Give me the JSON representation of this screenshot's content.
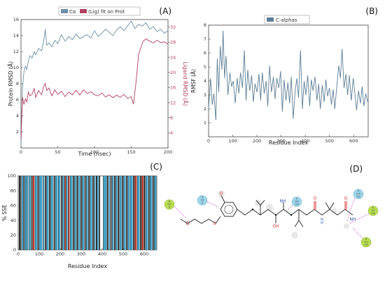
{
  "chart_data": [
    {
      "id": "A",
      "panel_label": "(A)",
      "type": "line",
      "title": "",
      "xlabel": "Time (nsec)",
      "ylabel": "Protein RMSD (Å)",
      "y2label": "Ligand RMSD (Å)",
      "xlim": [
        0,
        200
      ],
      "ylim": [
        0,
        16
      ],
      "y2lim": [
        0,
        34
      ],
      "x_ticks": [
        "0",
        "50",
        "100",
        "150",
        "200"
      ],
      "y_ticks": [
        "2",
        "4",
        "6",
        "8",
        "10",
        "12",
        "14",
        "16"
      ],
      "y2_ticks": [
        "4",
        "8",
        "12",
        "16",
        "20",
        "24",
        "28",
        "32"
      ],
      "legend": {
        "position": "top",
        "entries": [
          "Cα",
          "(Lig) fit on Prot"
        ]
      },
      "series": [
        {
          "name": "Cα",
          "axis": "left",
          "color": "#6a8fa8",
          "x": [
            0,
            2,
            4,
            6,
            8,
            10,
            12,
            15,
            18,
            20,
            24,
            28,
            31,
            33,
            35,
            38,
            42,
            46,
            50,
            55,
            60,
            65,
            70,
            75,
            80,
            85,
            90,
            95,
            100,
            105,
            110,
            115,
            120,
            125,
            130,
            135,
            140,
            145,
            150,
            155,
            160,
            165,
            170,
            175,
            180,
            185,
            190,
            195,
            200
          ],
          "y": [
            0.3,
            7.5,
            9.5,
            10.2,
            9.8,
            10.8,
            11.5,
            11.2,
            12.0,
            11.6,
            12.4,
            12.1,
            13.3,
            14.8,
            12.8,
            13.1,
            12.6,
            13.4,
            13.0,
            14.1,
            13.3,
            13.9,
            13.5,
            14.2,
            13.6,
            13.9,
            14.1,
            13.7,
            14.6,
            13.9,
            14.3,
            14.8,
            14.4,
            14.0,
            14.7,
            15.1,
            14.6,
            15.2,
            15.8,
            14.9,
            15.4,
            15.2,
            15.6,
            14.8,
            15.1,
            14.5,
            14.8,
            14.3,
            14.6
          ]
        },
        {
          "name": "(Lig) fit on Prot",
          "axis": "right",
          "color": "#b24060",
          "x": [
            0,
            2,
            4,
            6,
            8,
            10,
            12,
            15,
            18,
            20,
            24,
            28,
            31,
            33,
            35,
            38,
            42,
            46,
            50,
            55,
            60,
            65,
            70,
            75,
            80,
            85,
            90,
            95,
            100,
            105,
            110,
            115,
            120,
            125,
            130,
            135,
            140,
            145,
            150,
            153,
            156,
            158,
            160,
            163,
            166,
            170,
            175,
            180,
            185,
            190,
            195,
            200
          ],
          "y": [
            2.5,
            13.5,
            11.5,
            13.0,
            12.2,
            14.8,
            13.8,
            14.2,
            15.8,
            13.4,
            15.2,
            14.1,
            16.3,
            17.1,
            15.2,
            15.9,
            13.8,
            15.4,
            14.2,
            15.0,
            13.6,
            14.8,
            14.1,
            15.3,
            14.0,
            15.4,
            14.4,
            14.9,
            14.1,
            13.8,
            14.6,
            13.5,
            14.1,
            13.3,
            14.0,
            13.4,
            14.2,
            13.1,
            13.6,
            11.6,
            16.5,
            20.5,
            24.8,
            26.5,
            28.2,
            28.9,
            28.3,
            27.8,
            28.5,
            27.9,
            28.1,
            27.5
          ]
        }
      ]
    },
    {
      "id": "B",
      "panel_label": "(B)",
      "type": "line",
      "title": "",
      "xlabel": "Residue Index",
      "ylabel": "RMSF (Å)",
      "xlim": [
        0,
        660
      ],
      "ylim": [
        0,
        8
      ],
      "x_ticks": [
        "0",
        "100",
        "200",
        "300",
        "400",
        "500",
        "600"
      ],
      "y_ticks": [
        "1",
        "2",
        "3",
        "4",
        "5",
        "6",
        "7",
        "8"
      ],
      "legend": {
        "position": "top",
        "entries": [
          "C-alphas"
        ]
      },
      "series": [
        {
          "name": "C-alphas",
          "color": "#5d7e96",
          "x": [
            0,
            8,
            15,
            22,
            30,
            36,
            42,
            48,
            55,
            60,
            66,
            72,
            80,
            88,
            95,
            102,
            110,
            118,
            125,
            132,
            140,
            148,
            155,
            162,
            170,
            178,
            185,
            192,
            200,
            208,
            215,
            222,
            230,
            238,
            245,
            252,
            260,
            268,
            275,
            282,
            290,
            298,
            305,
            312,
            320,
            328,
            335,
            342,
            350,
            358,
            365,
            372,
            380,
            388,
            395,
            402,
            410,
            418,
            425,
            432,
            440,
            448,
            455,
            462,
            470,
            478,
            485,
            492,
            500,
            508,
            515,
            522,
            530,
            538,
            545,
            552,
            560,
            568,
            575,
            582,
            590,
            598,
            605,
            612,
            620,
            628,
            635,
            642,
            650,
            658
          ],
          "y": [
            2.0,
            4.2,
            2.3,
            3.1,
            1.2,
            5.6,
            3.2,
            6.5,
            4.8,
            7.6,
            4.2,
            5.8,
            3.0,
            4.6,
            3.6,
            4.0,
            2.4,
            4.2,
            3.1,
            4.6,
            3.5,
            6.2,
            2.6,
            4.8,
            3.3,
            4.4,
            2.5,
            3.8,
            3.2,
            4.5,
            2.6,
            4.6,
            3.1,
            4.0,
            2.2,
            5.1,
            3.2,
            4.3,
            2.7,
            4.2,
            3.5,
            4.7,
            1.8,
            4.1,
            2.6,
            3.9,
            2.4,
            4.3,
            1.3,
            3.3,
            4.2,
            2.8,
            6.2,
            2.0,
            4.0,
            3.0,
            4.4,
            2.2,
            4.1,
            3.3,
            4.3,
            2.6,
            3.8,
            2.0,
            3.7,
            2.5,
            4.1,
            2.9,
            3.5,
            2.3,
            3.4,
            2.0,
            3.6,
            5.1,
            4.2,
            6.3,
            3.5,
            4.5,
            3.0,
            4.4,
            2.6,
            4.2,
            3.1,
            1.9,
            3.3,
            2.4,
            3.6,
            2.2,
            3.1,
            2.5
          ]
        }
      ]
    },
    {
      "id": "C",
      "panel_label": "(C)",
      "type": "bar",
      "title": "",
      "xlabel": "Residue Index",
      "ylabel": "% SSE",
      "xlim": [
        0,
        660
      ],
      "ylim": [
        0,
        100
      ],
      "x_ticks": [
        "0",
        "100",
        "200",
        "300",
        "400",
        "500",
        "600"
      ],
      "y_ticks": [
        "0",
        "20",
        "40",
        "60",
        "80",
        "100"
      ],
      "colors": {
        "helix": "#3ea2c8",
        "strand": "#c43b2c",
        "other": "#111111"
      },
      "segments": [
        {
          "start": 5,
          "end": 12,
          "cls": "other"
        },
        {
          "start": 16,
          "end": 23,
          "cls": "helix"
        },
        {
          "start": 25,
          "end": 28,
          "cls": "other"
        },
        {
          "start": 31,
          "end": 40,
          "cls": "helix"
        },
        {
          "start": 42,
          "end": 48,
          "cls": "helix"
        },
        {
          "start": 52,
          "end": 60,
          "cls": "helix"
        },
        {
          "start": 63,
          "end": 66,
          "cls": "other"
        },
        {
          "start": 69,
          "end": 77,
          "cls": "strand"
        },
        {
          "start": 80,
          "end": 90,
          "cls": "helix"
        },
        {
          "start": 93,
          "end": 97,
          "cls": "other"
        },
        {
          "start": 100,
          "end": 114,
          "cls": "helix"
        },
        {
          "start": 118,
          "end": 124,
          "cls": "helix"
        },
        {
          "start": 128,
          "end": 132,
          "cls": "other"
        },
        {
          "start": 135,
          "end": 145,
          "cls": "helix"
        },
        {
          "start": 148,
          "end": 152,
          "cls": "other"
        },
        {
          "start": 155,
          "end": 166,
          "cls": "helix"
        },
        {
          "start": 170,
          "end": 174,
          "cls": "other"
        },
        {
          "start": 177,
          "end": 188,
          "cls": "helix"
        },
        {
          "start": 191,
          "end": 200,
          "cls": "helix"
        },
        {
          "start": 204,
          "end": 208,
          "cls": "other"
        },
        {
          "start": 211,
          "end": 219,
          "cls": "helix"
        },
        {
          "start": 221,
          "end": 226,
          "cls": "strand"
        },
        {
          "start": 228,
          "end": 235,
          "cls": "helix"
        },
        {
          "start": 238,
          "end": 244,
          "cls": "strand"
        },
        {
          "start": 247,
          "end": 258,
          "cls": "helix"
        },
        {
          "start": 261,
          "end": 265,
          "cls": "other"
        },
        {
          "start": 268,
          "end": 276,
          "cls": "helix"
        },
        {
          "start": 279,
          "end": 283,
          "cls": "other"
        },
        {
          "start": 286,
          "end": 295,
          "cls": "helix"
        },
        {
          "start": 298,
          "end": 302,
          "cls": "other"
        },
        {
          "start": 305,
          "end": 314,
          "cls": "helix"
        },
        {
          "start": 317,
          "end": 321,
          "cls": "other"
        },
        {
          "start": 324,
          "end": 332,
          "cls": "helix"
        },
        {
          "start": 335,
          "end": 339,
          "cls": "other"
        },
        {
          "start": 342,
          "end": 352,
          "cls": "helix"
        },
        {
          "start": 355,
          "end": 359,
          "cls": "other"
        },
        {
          "start": 362,
          "end": 368,
          "cls": "helix"
        },
        {
          "start": 371,
          "end": 374,
          "cls": "other"
        },
        {
          "start": 376,
          "end": 383,
          "cls": "helix"
        },
        {
          "start": 386,
          "end": 390,
          "cls": "other"
        },
        {
          "start": 405,
          "end": 420,
          "cls": "helix"
        },
        {
          "start": 423,
          "end": 427,
          "cls": "other"
        },
        {
          "start": 430,
          "end": 436,
          "cls": "helix"
        },
        {
          "start": 440,
          "end": 444,
          "cls": "other"
        },
        {
          "start": 447,
          "end": 455,
          "cls": "helix"
        },
        {
          "start": 458,
          "end": 462,
          "cls": "other"
        },
        {
          "start": 465,
          "end": 473,
          "cls": "helix"
        },
        {
          "start": 476,
          "end": 480,
          "cls": "other"
        },
        {
          "start": 483,
          "end": 492,
          "cls": "helix"
        },
        {
          "start": 495,
          "end": 499,
          "cls": "other"
        },
        {
          "start": 502,
          "end": 512,
          "cls": "helix"
        },
        {
          "start": 515,
          "end": 519,
          "cls": "other"
        },
        {
          "start": 522,
          "end": 530,
          "cls": "helix"
        },
        {
          "start": 533,
          "end": 545,
          "cls": "helix"
        },
        {
          "start": 548,
          "end": 552,
          "cls": "other"
        },
        {
          "start": 555,
          "end": 564,
          "cls": "strand"
        },
        {
          "start": 567,
          "end": 578,
          "cls": "helix"
        },
        {
          "start": 581,
          "end": 585,
          "cls": "other"
        },
        {
          "start": 588,
          "end": 596,
          "cls": "strand"
        },
        {
          "start": 599,
          "end": 604,
          "cls": "other"
        },
        {
          "start": 607,
          "end": 618,
          "cls": "helix"
        },
        {
          "start": 621,
          "end": 625,
          "cls": "other"
        },
        {
          "start": 628,
          "end": 638,
          "cls": "helix"
        },
        {
          "start": 641,
          "end": 645,
          "cls": "other"
        },
        {
          "start": 648,
          "end": 658,
          "cls": "helix"
        }
      ]
    }
  ],
  "diagram_d": {
    "panel_label": "(D)",
    "residues": [
      {
        "line1": "B",
        "line2": "HIS",
        "line3": "B",
        "color": "#9fd6ea"
      },
      {
        "line1": "B",
        "line2": "SER",
        "line3": "184",
        "color": "#9fd6ea"
      },
      {
        "line1": "B",
        "line2": "GLN",
        "line3": "165",
        "color": "#9fd6ea"
      },
      {
        "line1": "B",
        "line2": "GLY",
        "line3": "B",
        "color": "#b9dd52"
      },
      {
        "line1": "B",
        "line2": "GLY",
        "line3": "228",
        "color": "#b9dd52"
      },
      {
        "line1": "B",
        "line2": "ALA",
        "line3": "229",
        "color": "#b9dd52"
      }
    ],
    "atoms": {
      "O": "O",
      "NH": "NH",
      "OH": "OH",
      "N": "N",
      "H": "H"
    }
  }
}
